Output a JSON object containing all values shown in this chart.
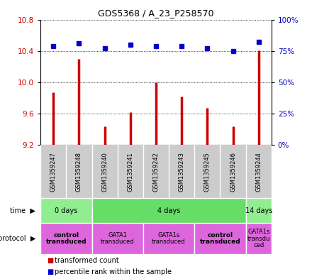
{
  "title": "GDS5368 / A_23_P258570",
  "samples": [
    "GSM1359247",
    "GSM1359248",
    "GSM1359240",
    "GSM1359241",
    "GSM1359242",
    "GSM1359243",
    "GSM1359245",
    "GSM1359246",
    "GSM1359244"
  ],
  "transformed_count": [
    9.87,
    10.3,
    9.44,
    9.62,
    10.0,
    9.82,
    9.67,
    9.44,
    10.41
  ],
  "percentile_rank": [
    79,
    81,
    77,
    80,
    79,
    79,
    77,
    75,
    82
  ],
  "ylim_left": [
    9.2,
    10.8
  ],
  "ylim_right": [
    0,
    100
  ],
  "yticks_left": [
    9.2,
    9.6,
    10.0,
    10.4,
    10.8
  ],
  "yticks_right": [
    0,
    25,
    50,
    75,
    100
  ],
  "ytick_labels_right": [
    "0%",
    "25%",
    "50%",
    "75%",
    "100%"
  ],
  "bar_color": "#cc0000",
  "dot_color": "#0000cc",
  "bg_color": "#ffffff",
  "time_groups": [
    {
      "label": "0 days",
      "start": 0,
      "end": 2,
      "color": "#90ee90"
    },
    {
      "label": "4 days",
      "start": 2,
      "end": 8,
      "color": "#66dd66"
    },
    {
      "label": "14 days",
      "start": 8,
      "end": 9,
      "color": "#90ee90"
    }
  ],
  "protocol_groups": [
    {
      "label": "control\ntransduced",
      "start": 0,
      "end": 2,
      "bold": true
    },
    {
      "label": "GATA1\ntransduced",
      "start": 2,
      "end": 4,
      "bold": false
    },
    {
      "label": "GATA1s\ntransduced",
      "start": 4,
      "end": 6,
      "bold": false
    },
    {
      "label": "control\ntransduced",
      "start": 6,
      "end": 8,
      "bold": true
    },
    {
      "label": "GATA1s\ntransdu\nced",
      "start": 8,
      "end": 9,
      "bold": false
    }
  ],
  "protocol_color": "#dd66dd",
  "sample_bg": "#cccccc",
  "legend_items": [
    {
      "color": "#cc0000",
      "label": "transformed count"
    },
    {
      "color": "#0000cc",
      "label": "percentile rank within the sample"
    }
  ]
}
